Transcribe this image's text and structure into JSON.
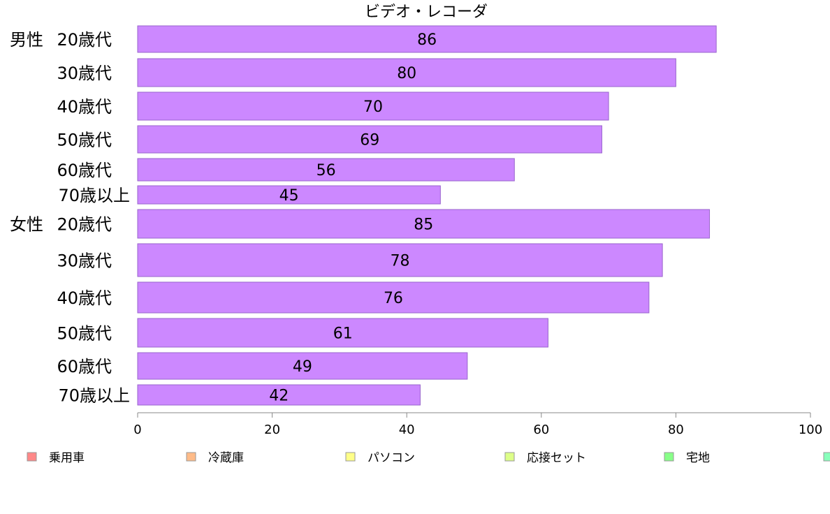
{
  "chart_data": {
    "type": "bar",
    "orientation": "horizontal",
    "title": "ビデオ・レコーダ",
    "groups": [
      {
        "label": "男性",
        "categories": [
          "20歳代",
          "30歳代",
          "40歳代",
          "50歳代",
          "60歳代",
          "70歳以上"
        ],
        "values": [
          86,
          80,
          70,
          69,
          56,
          45
        ]
      },
      {
        "label": "女性",
        "categories": [
          "20歳代",
          "30歳代",
          "40歳代",
          "50歳代",
          "60歳代",
          "70歳以上"
        ],
        "values": [
          85,
          78,
          76,
          61,
          49,
          42
        ]
      }
    ],
    "xlim": [
      0,
      100
    ],
    "xticks": [
      0,
      20,
      40,
      60,
      80,
      100
    ],
    "bar_color": "#cc88ff",
    "bar_edge_color": "#9966cc",
    "grid": false,
    "legend": {
      "placement": "bottom",
      "entries": [
        {
          "name": "乗用車",
          "color": "#ff8888"
        },
        {
          "name": "冷蔵庫",
          "color": "#ffbb88"
        },
        {
          "name": "パソコン",
          "color": "#ffff88"
        },
        {
          "name": "応接セット",
          "color": "#ddff88"
        },
        {
          "name": "宅地",
          "color": "#88ff88"
        },
        {
          "name": "",
          "color": "#88ffbb"
        }
      ]
    }
  }
}
